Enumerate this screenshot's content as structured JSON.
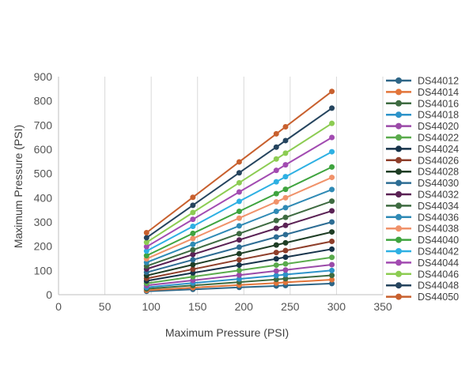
{
  "chart_data": {
    "type": "line",
    "xlabel": "Maximum Pressure (PSI)",
    "ylabel": "Maximum Pressure (PSI)",
    "xlim": [
      0,
      350
    ],
    "ylim": [
      0,
      900
    ],
    "x_ticks": [
      0,
      50,
      100,
      150,
      200,
      250,
      300,
      350
    ],
    "y_ticks": [
      0,
      100,
      200,
      300,
      400,
      500,
      600,
      700,
      800,
      900
    ],
    "grid": "vertical-only",
    "legend_position": "right",
    "x": [
      95,
      145,
      195,
      235,
      245,
      295
    ],
    "series": [
      {
        "name": "DS44012",
        "color": "#2e6687",
        "values": [
          14,
          22,
          30,
          36,
          38,
          46
        ]
      },
      {
        "name": "DS44014",
        "color": "#e2753a",
        "values": [
          18,
          29,
          40,
          48,
          51,
          62
        ]
      },
      {
        "name": "DS44016",
        "color": "#3e6b41",
        "values": [
          24,
          38,
          52,
          63,
          66,
          80
        ]
      },
      {
        "name": "DS44018",
        "color": "#2d93c9",
        "values": [
          30,
          48,
          65,
          79,
          83,
          100
        ]
      },
      {
        "name": "DS44020",
        "color": "#9b4aa8",
        "values": [
          38,
          59,
          81,
          98,
          102,
          124
        ]
      },
      {
        "name": "DS44022",
        "color": "#5aab4c",
        "values": [
          47,
          74,
          100,
          122,
          127,
          154
        ]
      },
      {
        "name": "DS44024",
        "color": "#16334a",
        "values": [
          57,
          90,
          122,
          148,
          155,
          188
        ]
      },
      {
        "name": "DS44026",
        "color": "#8e3e2a",
        "values": [
          67,
          105,
          144,
          174,
          182,
          220
        ]
      },
      {
        "name": "DS44028",
        "color": "#1e3d24",
        "values": [
          79,
          124,
          169,
          205,
          214,
          259
        ]
      },
      {
        "name": "DS44030",
        "color": "#2d6d94",
        "values": [
          92,
          144,
          196,
          238,
          248,
          300
        ]
      },
      {
        "name": "DS44032",
        "color": "#5a2154",
        "values": [
          106,
          166,
          226,
          274,
          286,
          346
        ]
      },
      {
        "name": "DS44034",
        "color": "#3e6b41",
        "values": [
          118,
          185,
          252,
          306,
          319,
          386
        ]
      },
      {
        "name": "DS44036",
        "color": "#2f8ab5",
        "values": [
          133,
          208,
          284,
          344,
          359,
          434
        ]
      },
      {
        "name": "DS44038",
        "color": "#f0926a",
        "values": [
          148,
          232,
          316,
          383,
          400,
          484
        ]
      },
      {
        "name": "DS44040",
        "color": "#3fa43f",
        "values": [
          161,
          253,
          344,
          417,
          435,
          527
        ]
      },
      {
        "name": "DS44042",
        "color": "#2eb0e3",
        "values": [
          180,
          282,
          385,
          466,
          487,
          590
        ]
      },
      {
        "name": "DS44044",
        "color": "#a24bb1",
        "values": [
          198,
          311,
          424,
          513,
          536,
          649
        ]
      },
      {
        "name": "DS44046",
        "color": "#8ccc52",
        "values": [
          216,
          339,
          462,
          560,
          584,
          707
        ]
      },
      {
        "name": "DS44048",
        "color": "#25445e",
        "values": [
          235,
          369,
          503,
          609,
          636,
          770
        ]
      },
      {
        "name": "DS44050",
        "color": "#c8602e",
        "values": [
          256,
          402,
          548,
          664,
          693,
          839
        ]
      }
    ]
  }
}
